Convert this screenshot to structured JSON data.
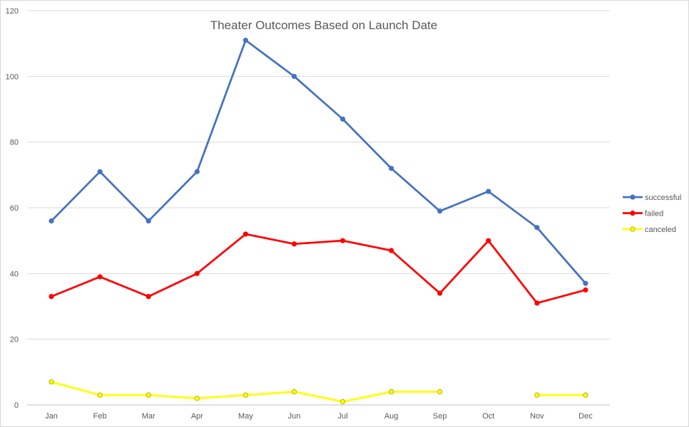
{
  "chart_data": {
    "type": "line",
    "title": "Theater Outcomes Based on Launch Date",
    "xlabel": "",
    "ylabel": "",
    "categories": [
      "Jan",
      "Feb",
      "Mar",
      "Apr",
      "May",
      "Jun",
      "Jul",
      "Aug",
      "Sep",
      "Oct",
      "Nov",
      "Dec"
    ],
    "ylim": [
      0,
      120
    ],
    "yticks": [
      0,
      20,
      40,
      60,
      80,
      100,
      120
    ],
    "grid": true,
    "legend_position": "right",
    "series": [
      {
        "name": "successful",
        "color": "#4472C4",
        "values": [
          56,
          71,
          56,
          71,
          111,
          100,
          87,
          72,
          59,
          65,
          54,
          37
        ]
      },
      {
        "name": "failed",
        "color": "#FF0000",
        "values": [
          33,
          39,
          33,
          40,
          52,
          49,
          50,
          47,
          34,
          50,
          31,
          35
        ]
      },
      {
        "name": "canceled",
        "color": "#FFFF00",
        "values": [
          7,
          3,
          3,
          2,
          3,
          4,
          1,
          4,
          4,
          null,
          3,
          3
        ]
      }
    ]
  }
}
